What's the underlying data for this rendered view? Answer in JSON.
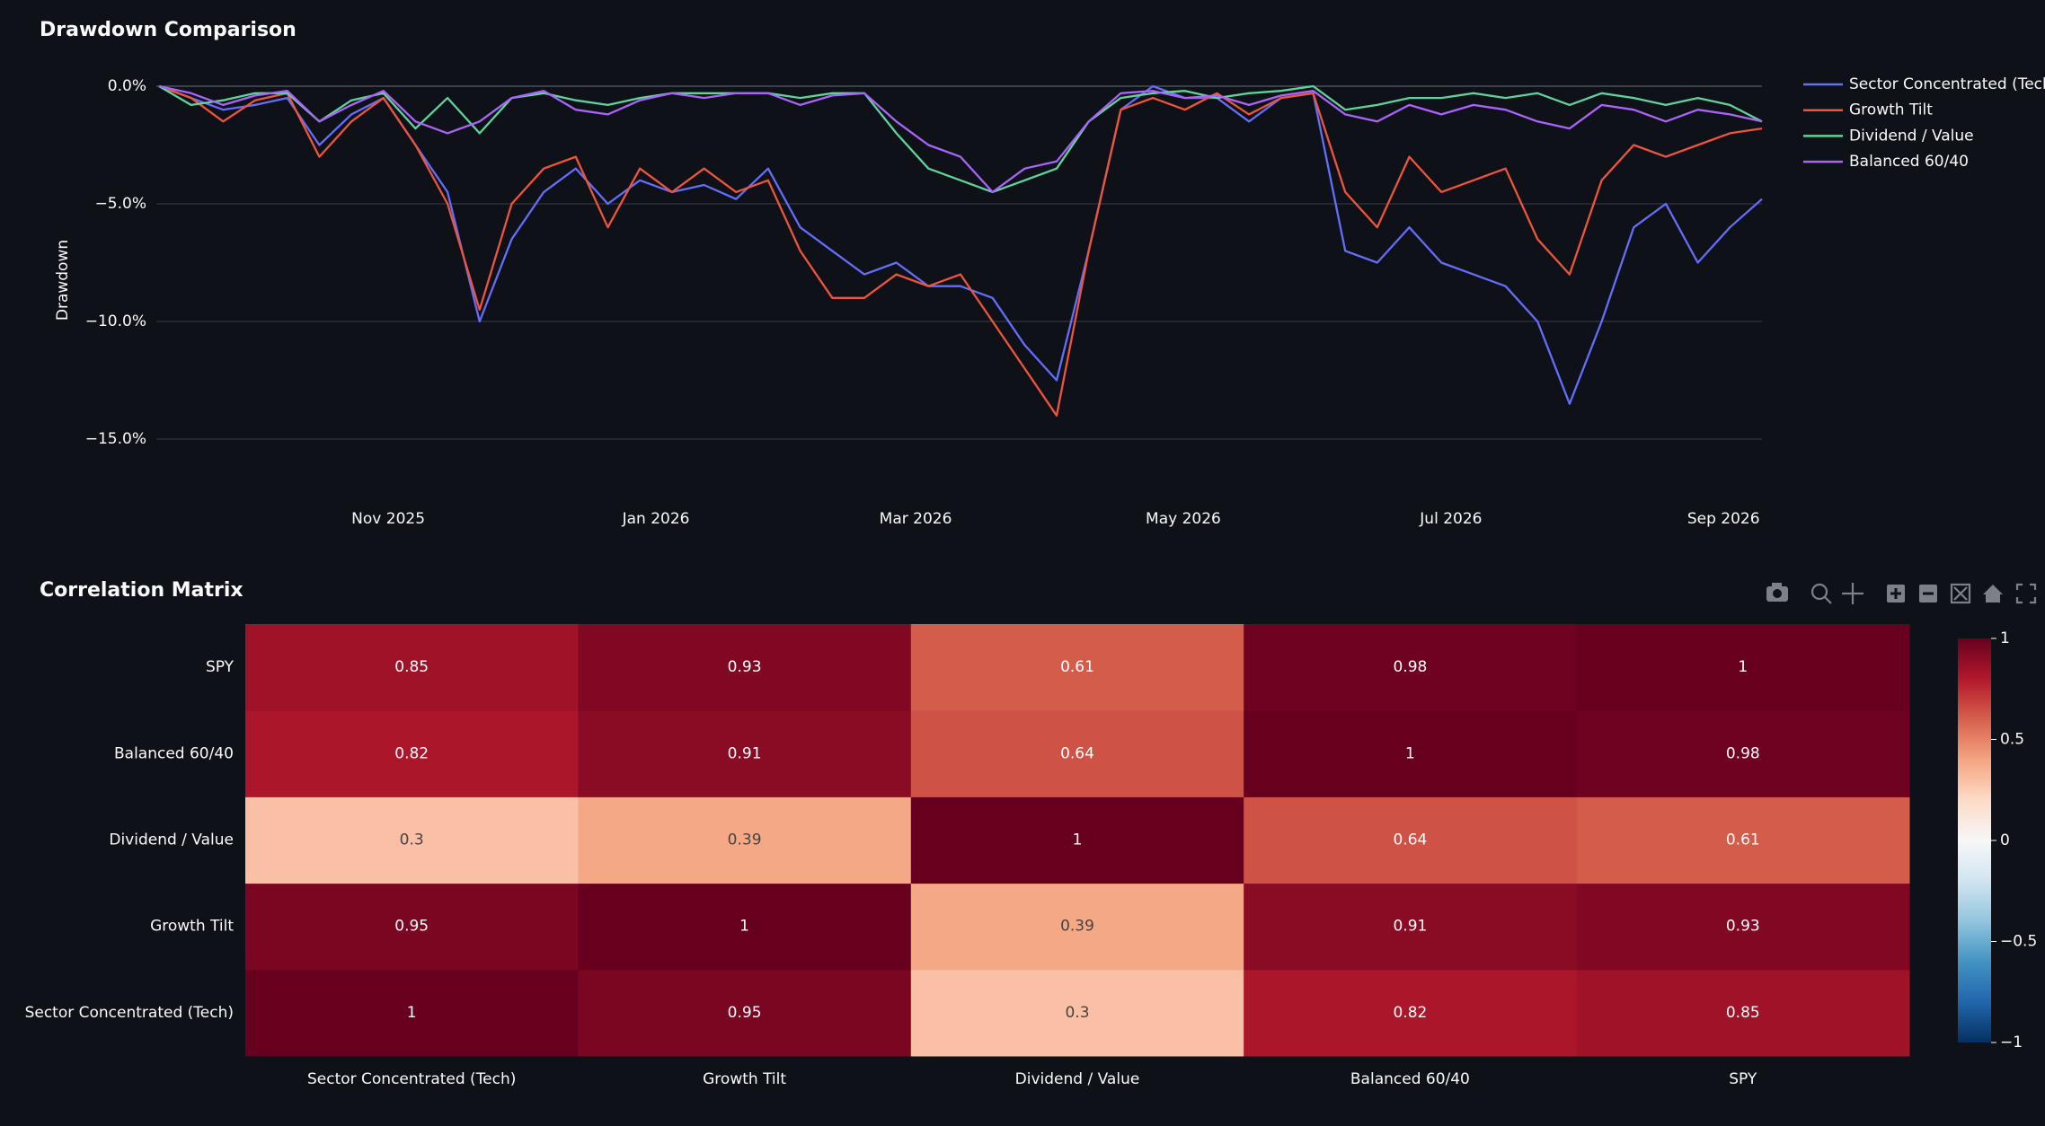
{
  "chart_data": [
    {
      "type": "line",
      "title": "Drawdown Comparison",
      "ylabel": "Drawdown",
      "x": [
        2025.69,
        2025.71,
        2025.73,
        2025.75,
        2025.77,
        2025.79,
        2025.81,
        2025.83,
        2025.85,
        2025.87,
        2025.89,
        2025.91,
        2025.93,
        2025.95,
        2025.97,
        2025.99,
        2026.01,
        2026.03,
        2026.05,
        2026.07,
        2026.09,
        2026.11,
        2026.13,
        2026.15,
        2026.17,
        2026.19,
        2026.21,
        2026.23,
        2026.25,
        2026.27,
        2026.29,
        2026.31,
        2026.33,
        2026.35,
        2026.37,
        2026.39,
        2026.41,
        2026.43,
        2026.45,
        2026.47,
        2026.49,
        2026.51,
        2026.53,
        2026.55,
        2026.57,
        2026.59,
        2026.61,
        2026.63,
        2026.65,
        2026.67,
        2026.69
      ],
      "xlim": [
        2025.69,
        2026.69
      ],
      "xticks": [
        {
          "value": 2025.833,
          "label": "Nov 2025"
        },
        {
          "value": 2026.0,
          "label": "Jan 2026"
        },
        {
          "value": 2026.162,
          "label": "Mar 2026"
        },
        {
          "value": 2026.329,
          "label": "May 2026"
        },
        {
          "value": 2026.496,
          "label": "Jul 2026"
        },
        {
          "value": 2026.666,
          "label": "Sep 2026"
        }
      ],
      "ylim": [
        -17.5,
        0.8
      ],
      "yticks": [
        {
          "value": 0,
          "label": "0.0%"
        },
        {
          "value": -5,
          "label": "−5.0%"
        },
        {
          "value": -10,
          "label": "−10.0%"
        },
        {
          "value": -15,
          "label": "−15.0%"
        }
      ],
      "grid": true,
      "legend": "right",
      "series": [
        {
          "name": "Sector Concentrated (Tech)",
          "color": "#636efa",
          "values": [
            0,
            -0.5,
            -1,
            -0.8,
            -0.5,
            -2.5,
            -1.2,
            -0.5,
            -2.5,
            -4.5,
            -10,
            -6.5,
            -4.5,
            -3.5,
            -5,
            -4,
            -4.5,
            -4.2,
            -4.8,
            -3.5,
            -6,
            -7,
            -8,
            -7.5,
            -8.5,
            -8.5,
            -9,
            -11,
            -12.5,
            -7,
            -1,
            0,
            -0.5,
            -0.5,
            -1.5,
            -0.5,
            -0.3,
            -7,
            -7.5,
            -6,
            -7.5,
            -8,
            -8.5,
            -10,
            -13.5,
            -10,
            -6,
            -5,
            -7.5,
            -6,
            -4.8
          ]
        },
        {
          "name": "Growth Tilt",
          "color": "#ef553b",
          "values": [
            0,
            -0.5,
            -1.5,
            -0.6,
            -0.3,
            -3,
            -1.5,
            -0.5,
            -2.5,
            -5,
            -9.5,
            -5,
            -3.5,
            -3,
            -6,
            -3.5,
            -4.5,
            -3.5,
            -4.5,
            -4,
            -7,
            -9,
            -9,
            -8,
            -8.5,
            -8,
            -10,
            -12,
            -14,
            -7,
            -1,
            -0.5,
            -1,
            -0.3,
            -1.2,
            -0.5,
            -0.3,
            -4.5,
            -6,
            -3,
            -4.5,
            -4,
            -3.5,
            -6.5,
            -8,
            -4,
            -2.5,
            -3,
            -2.5,
            -2,
            -1.8
          ]
        },
        {
          "name": "Dividend / Value",
          "color": "#5fd39b",
          "values": [
            0,
            -0.8,
            -0.6,
            -0.3,
            -0.3,
            -1.5,
            -0.6,
            -0.3,
            -1.8,
            -0.5,
            -2,
            -0.5,
            -0.3,
            -0.6,
            -0.8,
            -0.5,
            -0.3,
            -0.3,
            -0.3,
            -0.3,
            -0.5,
            -0.3,
            -0.3,
            -2,
            -3.5,
            -4,
            -4.5,
            -4,
            -3.5,
            -1.5,
            -0.5,
            -0.3,
            -0.2,
            -0.5,
            -0.3,
            -0.2,
            0,
            -1,
            -0.8,
            -0.5,
            -0.5,
            -0.3,
            -0.5,
            -0.3,
            -0.8,
            -0.3,
            -0.5,
            -0.8,
            -0.5,
            -0.8,
            -1.5
          ]
        },
        {
          "name": "Balanced 60/40",
          "color": "#ab63fa",
          "values": [
            0,
            -0.3,
            -0.8,
            -0.4,
            -0.2,
            -1.5,
            -0.8,
            -0.2,
            -1.5,
            -2,
            -1.5,
            -0.5,
            -0.2,
            -1,
            -1.2,
            -0.6,
            -0.3,
            -0.5,
            -0.3,
            -0.3,
            -0.8,
            -0.4,
            -0.3,
            -1.5,
            -2.5,
            -3,
            -4.5,
            -3.5,
            -3.2,
            -1.5,
            -0.3,
            -0.2,
            -0.5,
            -0.4,
            -0.8,
            -0.4,
            -0.2,
            -1.2,
            -1.5,
            -0.8,
            -1.2,
            -0.8,
            -1,
            -1.5,
            -1.8,
            -0.8,
            -1,
            -1.5,
            -1,
            -1.2,
            -1.5
          ]
        }
      ]
    },
    {
      "type": "heatmap",
      "title": "Correlation Matrix",
      "x": [
        "Sector Concentrated (Tech)",
        "Growth Tilt",
        "Dividend / Value",
        "Balanced 60/40",
        "SPY"
      ],
      "y": [
        "Sector Concentrated (Tech)",
        "Growth Tilt",
        "Dividend / Value",
        "Balanced 60/40",
        "SPY"
      ],
      "z": [
        [
          1,
          0.95,
          0.3,
          0.82,
          0.85
        ],
        [
          0.95,
          1,
          0.39,
          0.91,
          0.93
        ],
        [
          0.3,
          0.39,
          1,
          0.64,
          0.61
        ],
        [
          0.82,
          0.91,
          0.64,
          1,
          0.98
        ],
        [
          0.85,
          0.93,
          0.61,
          0.98,
          1
        ]
      ],
      "zlim": [
        -1,
        1
      ],
      "colorscale": [
        "#053061",
        "#2166ac",
        "#4393c3",
        "#92c5de",
        "#d1e5f0",
        "#f7f7f7",
        "#fddbc7",
        "#f4a582",
        "#d6604d",
        "#b2182b",
        "#67001f"
      ],
      "colorbar_ticks": [
        {
          "value": -1,
          "label": "−1"
        },
        {
          "value": -0.5,
          "label": "−0.5"
        },
        0,
        0.5,
        1
      ]
    }
  ]
}
